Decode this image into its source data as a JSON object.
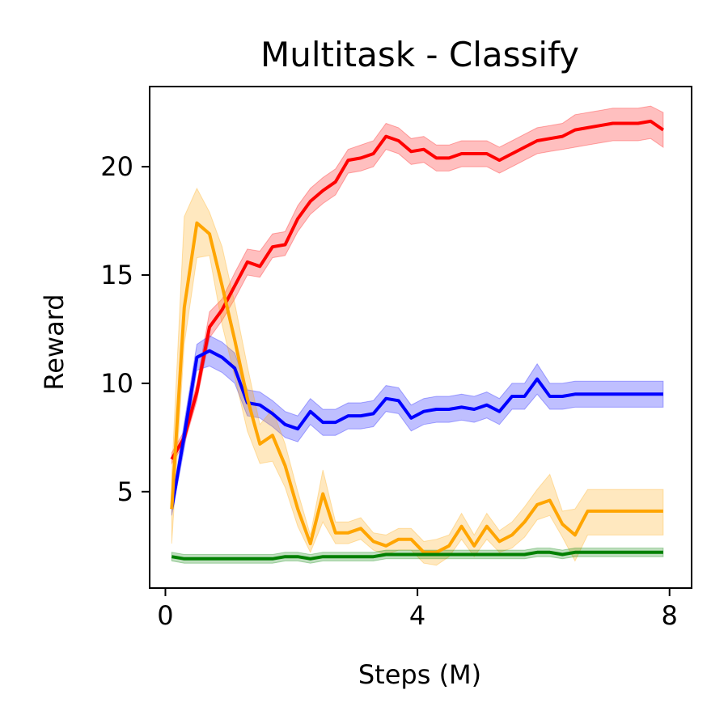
{
  "chart_data": {
    "type": "line",
    "title": "Multitask - Classify",
    "xlabel": "Steps (M)",
    "ylabel": "Reward",
    "xlim": [
      -0.25,
      8.35
    ],
    "ylim": [
      0.55,
      23.7
    ],
    "xticks": [
      0,
      4,
      8
    ],
    "xtick_labels": [
      "0",
      "4",
      "8"
    ],
    "yticks": [
      5,
      10,
      15,
      20
    ],
    "ytick_labels": [
      "5",
      "10",
      "15",
      "20"
    ],
    "grid": false,
    "legend": "none",
    "x": [
      0.1,
      0.3,
      0.5,
      0.7,
      0.9,
      1.1,
      1.3,
      1.5,
      1.7,
      1.9,
      2.1,
      2.3,
      2.5,
      2.7,
      2.9,
      3.1,
      3.3,
      3.5,
      3.7,
      3.9,
      4.1,
      4.3,
      4.5,
      4.7,
      4.9,
      5.1,
      5.3,
      5.5,
      5.7,
      5.9,
      6.1,
      6.3,
      6.5,
      6.7,
      6.9,
      7.1,
      7.3,
      7.5,
      7.7,
      7.9
    ],
    "series": [
      {
        "color": "#ff0000",
        "values": [
          6.5,
          7.5,
          9.6,
          12.6,
          13.4,
          14.5,
          15.6,
          15.4,
          16.3,
          16.4,
          17.6,
          18.4,
          18.9,
          19.3,
          20.3,
          20.4,
          20.6,
          21.4,
          21.2,
          20.7,
          20.8,
          20.4,
          20.4,
          20.6,
          20.6,
          20.6,
          20.3,
          20.6,
          20.9,
          21.2,
          21.3,
          21.4,
          21.7,
          21.8,
          21.9,
          22.0,
          22.0,
          22.0,
          22.1,
          21.7
        ],
        "lower": [
          6.3,
          7.2,
          9.2,
          12.1,
          12.9,
          13.9,
          15.0,
          14.9,
          15.8,
          15.9,
          17.0,
          17.8,
          18.3,
          18.7,
          19.7,
          19.8,
          20.0,
          20.8,
          20.6,
          20.1,
          20.2,
          19.8,
          19.8,
          20.0,
          20.0,
          20.0,
          19.7,
          20.0,
          20.3,
          20.6,
          20.7,
          20.8,
          20.9,
          21.0,
          21.1,
          21.2,
          21.2,
          21.2,
          21.3,
          20.9
        ],
        "upper": [
          6.8,
          7.8,
          10.0,
          13.3,
          13.9,
          15.1,
          16.2,
          16.1,
          16.9,
          17.0,
          18.2,
          19.0,
          19.5,
          19.9,
          20.8,
          21.0,
          21.2,
          22.0,
          21.8,
          21.3,
          21.4,
          21.0,
          21.0,
          21.2,
          21.2,
          21.2,
          20.9,
          21.2,
          21.5,
          21.8,
          21.9,
          22.0,
          22.4,
          22.5,
          22.6,
          22.7,
          22.7,
          22.7,
          22.8,
          22.5
        ]
      },
      {
        "color": "#0000ff",
        "values": [
          4.2,
          7.6,
          11.2,
          11.5,
          11.2,
          10.7,
          9.1,
          9.0,
          8.6,
          8.1,
          7.9,
          8.7,
          8.2,
          8.2,
          8.5,
          8.5,
          8.6,
          9.3,
          9.2,
          8.4,
          8.7,
          8.8,
          8.8,
          8.9,
          8.8,
          9.0,
          8.7,
          9.4,
          9.4,
          10.2,
          9.4,
          9.4,
          9.5,
          9.5,
          9.5,
          9.5,
          9.5,
          9.5,
          9.5,
          9.5
        ],
        "lower": [
          3.9,
          7.0,
          10.6,
          10.8,
          10.5,
          10.0,
          8.5,
          8.4,
          8.0,
          7.5,
          7.3,
          8.1,
          7.6,
          7.6,
          7.9,
          7.9,
          8.0,
          8.7,
          8.6,
          7.8,
          8.1,
          8.2,
          8.2,
          8.3,
          8.2,
          8.4,
          8.1,
          8.8,
          8.8,
          9.5,
          8.8,
          8.8,
          8.9,
          8.9,
          8.9,
          8.9,
          8.9,
          8.9,
          8.9,
          8.9
        ],
        "upper": [
          4.5,
          8.2,
          11.8,
          12.2,
          11.9,
          11.4,
          9.7,
          9.6,
          9.2,
          8.7,
          8.5,
          9.3,
          8.8,
          8.8,
          9.1,
          9.1,
          9.2,
          9.9,
          9.8,
          9.0,
          9.3,
          9.4,
          9.4,
          9.5,
          9.4,
          9.6,
          9.3,
          10.0,
          10.0,
          10.9,
          10.0,
          10.0,
          10.1,
          10.1,
          10.1,
          10.1,
          10.1,
          10.1,
          10.1,
          10.1
        ]
      },
      {
        "color": "#ffa500",
        "values": [
          4.2,
          13.5,
          17.4,
          16.9,
          14.5,
          12.0,
          9.3,
          7.2,
          7.6,
          6.2,
          4.2,
          2.6,
          4.9,
          3.1,
          3.1,
          3.3,
          2.7,
          2.5,
          2.8,
          2.8,
          2.2,
          2.2,
          2.5,
          3.4,
          2.5,
          3.4,
          2.7,
          3.0,
          3.6,
          4.4,
          4.6,
          3.5,
          3.0,
          4.1,
          4.1,
          4.1,
          4.1,
          4.1,
          4.1,
          4.1
        ],
        "lower": [
          2.6,
          11.8,
          15.8,
          15.9,
          12.7,
          10.3,
          7.8,
          6.3,
          6.4,
          5.2,
          3.4,
          2.2,
          3.6,
          2.6,
          2.6,
          2.8,
          2.3,
          2.1,
          2.3,
          2.3,
          1.7,
          1.6,
          2.0,
          2.8,
          2.0,
          2.8,
          2.2,
          2.4,
          2.9,
          3.7,
          3.9,
          2.9,
          1.8,
          3.0,
          3.0,
          3.0,
          3.0,
          3.0,
          3.0,
          3.0
        ],
        "upper": [
          5.8,
          17.7,
          19.0,
          17.9,
          16.3,
          13.7,
          10.8,
          8.1,
          8.8,
          7.2,
          5.0,
          3.0,
          6.0,
          3.6,
          3.6,
          3.8,
          3.1,
          3.0,
          3.3,
          3.3,
          2.7,
          2.8,
          3.0,
          4.0,
          3.0,
          4.0,
          3.2,
          3.6,
          4.3,
          5.1,
          5.8,
          4.1,
          4.2,
          5.1,
          5.1,
          5.1,
          5.1,
          5.1,
          5.1,
          5.1
        ]
      },
      {
        "color": "#008000",
        "values": [
          2.0,
          1.9,
          1.9,
          1.9,
          1.9,
          1.9,
          1.9,
          1.9,
          1.9,
          2.0,
          2.0,
          1.9,
          2.0,
          2.0,
          2.0,
          2.0,
          2.0,
          2.1,
          2.1,
          2.1,
          2.1,
          2.1,
          2.1,
          2.1,
          2.1,
          2.1,
          2.1,
          2.1,
          2.1,
          2.2,
          2.2,
          2.1,
          2.2,
          2.2,
          2.2,
          2.2,
          2.2,
          2.2,
          2.2,
          2.2
        ],
        "lower": [
          1.8,
          1.7,
          1.7,
          1.7,
          1.7,
          1.7,
          1.7,
          1.7,
          1.7,
          1.8,
          1.8,
          1.7,
          1.8,
          1.8,
          1.8,
          1.8,
          1.8,
          1.9,
          1.9,
          1.9,
          1.9,
          1.9,
          1.9,
          1.9,
          1.9,
          1.9,
          1.9,
          1.9,
          1.9,
          2.0,
          2.0,
          1.9,
          2.0,
          2.0,
          2.0,
          2.0,
          2.0,
          2.0,
          2.0,
          2.0
        ],
        "upper": [
          2.2,
          2.1,
          2.1,
          2.1,
          2.1,
          2.1,
          2.1,
          2.1,
          2.1,
          2.2,
          2.2,
          2.1,
          2.2,
          2.2,
          2.2,
          2.2,
          2.2,
          2.3,
          2.3,
          2.3,
          2.3,
          2.3,
          2.3,
          2.3,
          2.3,
          2.3,
          2.3,
          2.3,
          2.3,
          2.4,
          2.4,
          2.3,
          2.4,
          2.4,
          2.4,
          2.4,
          2.4,
          2.4,
          2.4,
          2.4
        ]
      }
    ]
  }
}
